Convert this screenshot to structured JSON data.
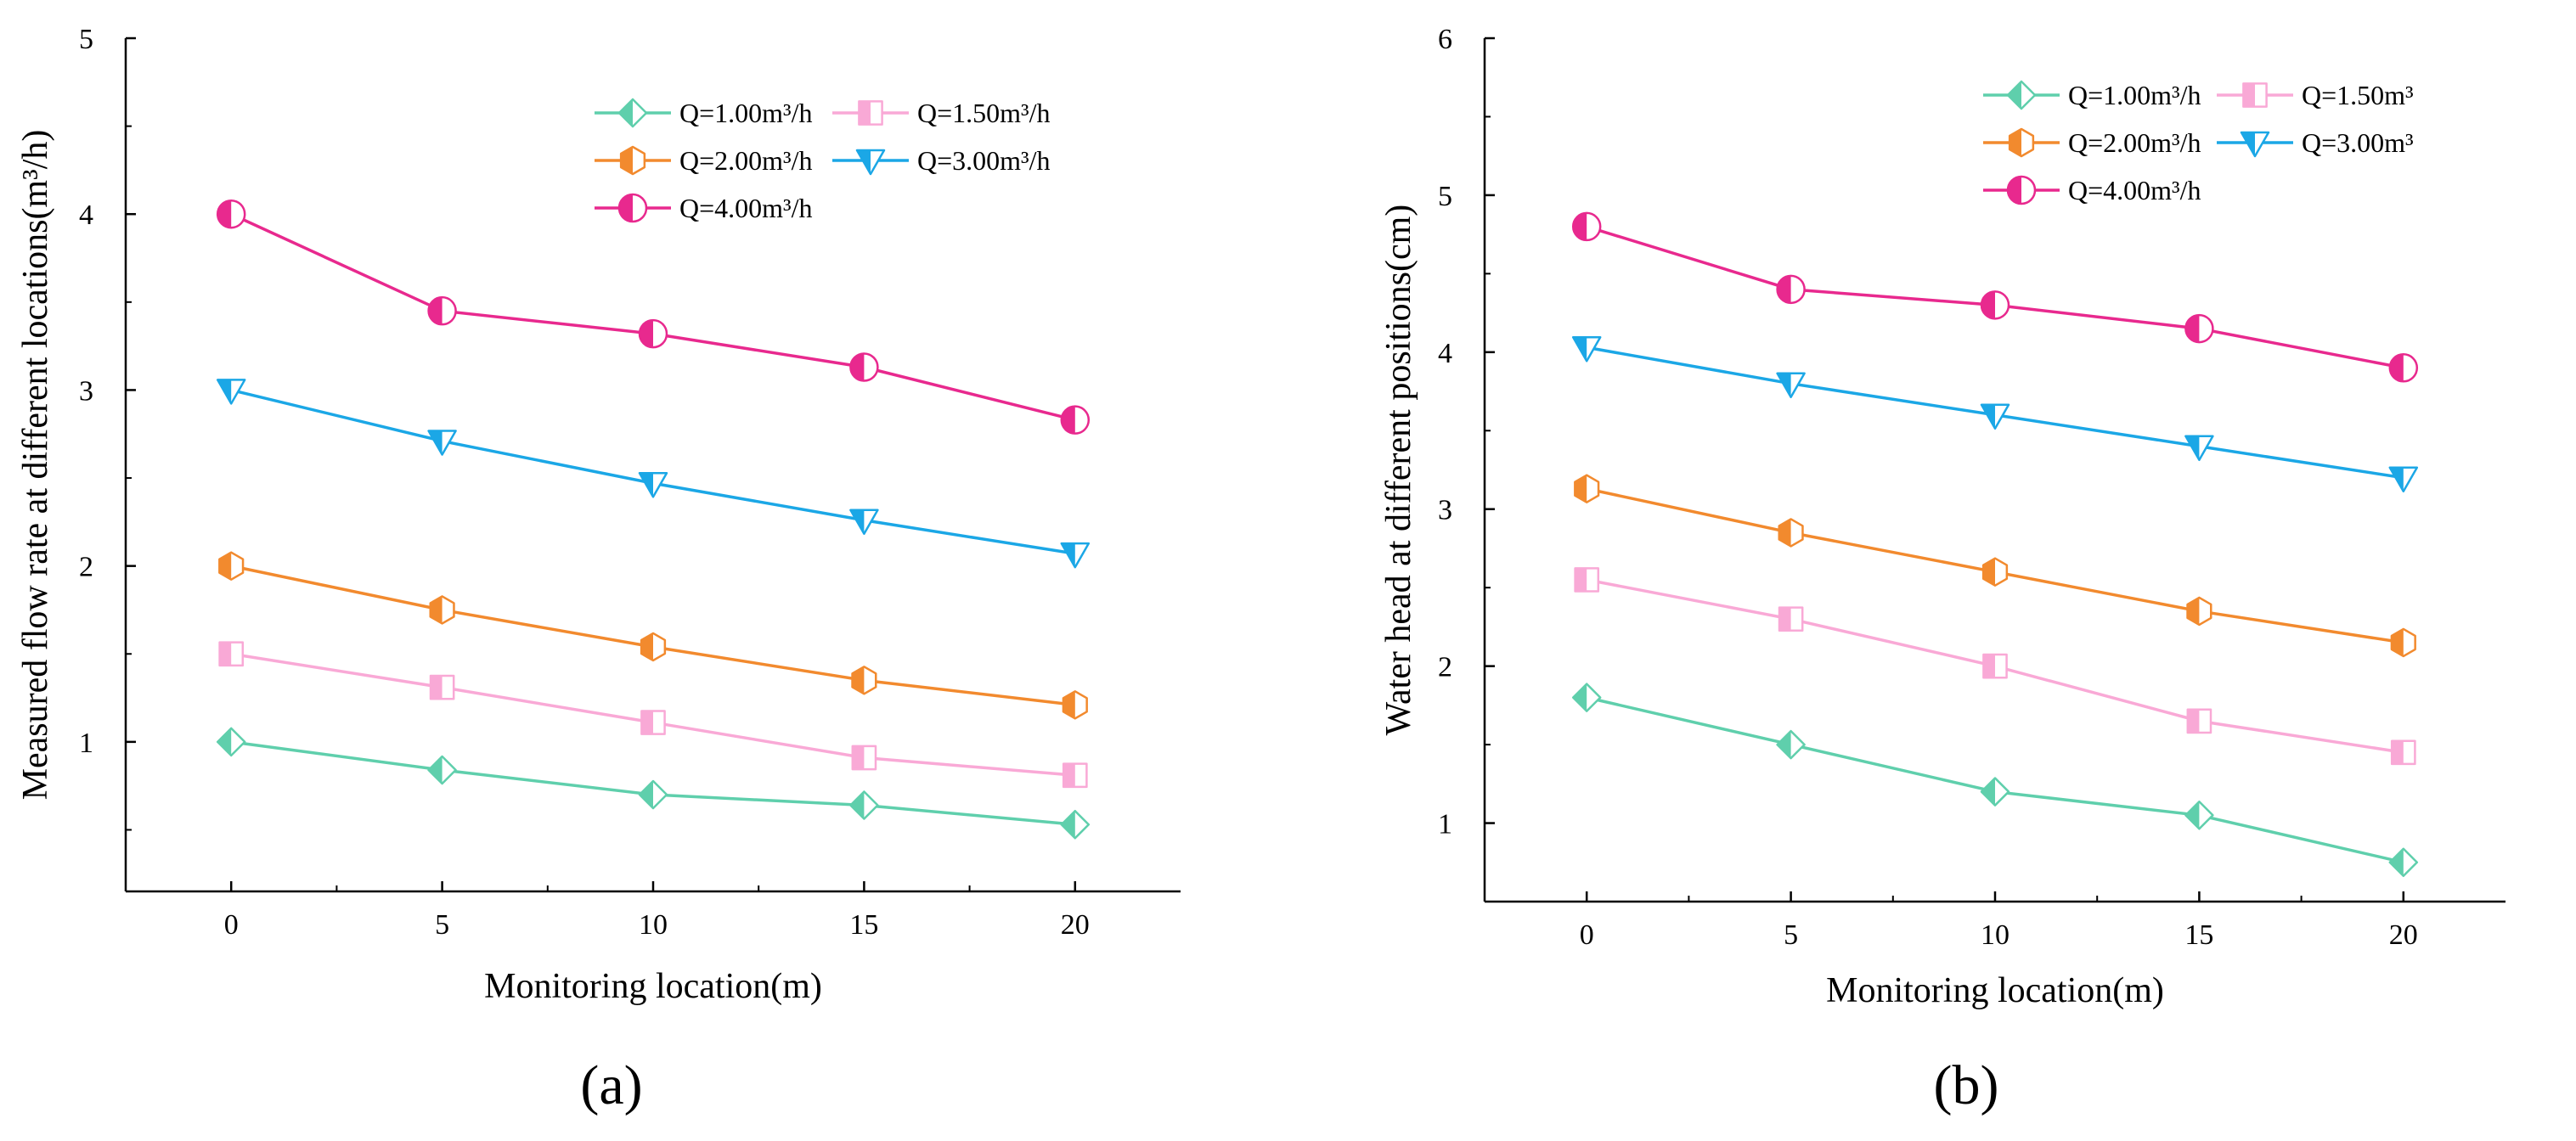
{
  "chart_data": [
    {
      "type": "line",
      "panel_label": "(a)",
      "xlabel": "Monitoring location(m)",
      "ylabel": "Measured flow rate at different locations(m³/h)",
      "x": [
        0,
        5,
        10,
        15,
        20
      ],
      "xlim": [
        -2.5,
        22.5
      ],
      "ylim": [
        0.15,
        5
      ],
      "xticks": [
        "0",
        "5",
        "10",
        "15",
        "20"
      ],
      "yticks": [
        "1",
        "2",
        "3",
        "4",
        "5"
      ],
      "legend_position": "top-right",
      "series": [
        {
          "name": "Q=1.00m³/h",
          "color": "#5fcfac",
          "marker": "diamond",
          "values": [
            1.0,
            0.84,
            0.7,
            0.64,
            0.53
          ]
        },
        {
          "name": "Q=1.50m³/h",
          "color": "#f9a9d6",
          "marker": "square",
          "values": [
            1.5,
            1.31,
            1.11,
            0.91,
            0.81
          ]
        },
        {
          "name": "Q=2.00m³/h",
          "color": "#f28a2e",
          "marker": "hexagon",
          "values": [
            2.0,
            1.75,
            1.54,
            1.35,
            1.21
          ]
        },
        {
          "name": "Q=3.00m³/h",
          "color": "#1ba7e6",
          "marker": "triangle-down",
          "values": [
            3.0,
            2.71,
            2.47,
            2.26,
            2.07
          ]
        },
        {
          "name": "Q=4.00m³/h",
          "color": "#e8298e",
          "marker": "circle",
          "values": [
            4.0,
            3.45,
            3.32,
            3.13,
            2.83
          ]
        }
      ]
    },
    {
      "type": "line",
      "panel_label": "(b)",
      "xlabel": "Monitoring location(m)",
      "ylabel": "Water head at different positions(cm)",
      "x": [
        0,
        5,
        10,
        15,
        20
      ],
      "xlim": [
        -2.5,
        22.5
      ],
      "ylim": [
        0.5,
        6
      ],
      "xticks": [
        "0",
        "5",
        "10",
        "15",
        "20"
      ],
      "yticks": [
        "1",
        "2",
        "3",
        "4",
        "5",
        "6"
      ],
      "legend_position": "top-right",
      "series": [
        {
          "name": "Q=1.00m³/h",
          "color": "#5fcfac",
          "marker": "diamond",
          "values": [
            1.8,
            1.5,
            1.2,
            1.05,
            0.75
          ]
        },
        {
          "name": "Q=1.50m³",
          "color": "#f9a9d6",
          "marker": "square",
          "values": [
            2.55,
            2.3,
            2.0,
            1.65,
            1.45
          ]
        },
        {
          "name": "Q=2.00m³/h",
          "color": "#f28a2e",
          "marker": "hexagon",
          "values": [
            3.13,
            2.85,
            2.6,
            2.35,
            2.15
          ]
        },
        {
          "name": "Q=3.00m³",
          "color": "#1ba7e6",
          "marker": "triangle-down",
          "values": [
            4.03,
            3.8,
            3.6,
            3.4,
            3.2
          ]
        },
        {
          "name": "Q=4.00m³/h",
          "color": "#e8298e",
          "marker": "circle",
          "values": [
            4.8,
            4.4,
            4.3,
            4.15,
            3.9
          ]
        }
      ]
    }
  ]
}
